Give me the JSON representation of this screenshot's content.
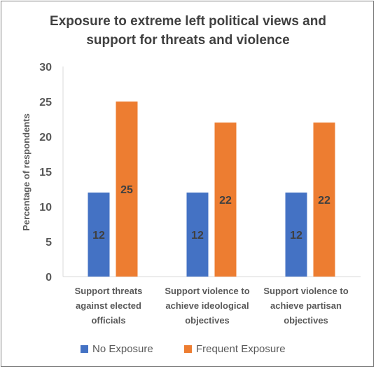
{
  "chart_data": {
    "type": "bar",
    "title_lines": [
      "Exposure to extreme left political views and",
      "support for threats and violence"
    ],
    "ylabel": "Percentage of respondents",
    "ylim": [
      0,
      30
    ],
    "yticks": [
      "0",
      "5",
      "10",
      "15",
      "20",
      "25",
      "30"
    ],
    "grid": false,
    "legend_position": "bottom",
    "categories": [
      [
        "Support threats",
        "against elected",
        "officials"
      ],
      [
        "Support violence to",
        "achieve ideological",
        "objectives"
      ],
      [
        "Support violence to",
        "achieve partisan",
        "objectives"
      ]
    ],
    "series": [
      {
        "name": "No Exposure",
        "color": "#4472c4",
        "values": [
          12,
          12,
          12
        ],
        "value_labels": [
          "12",
          "12",
          "12"
        ]
      },
      {
        "name": "Frequent Exposure",
        "color": "#ed7d31",
        "values": [
          25,
          22,
          22
        ],
        "value_labels": [
          "25",
          "22",
          "22"
        ]
      }
    ]
  }
}
